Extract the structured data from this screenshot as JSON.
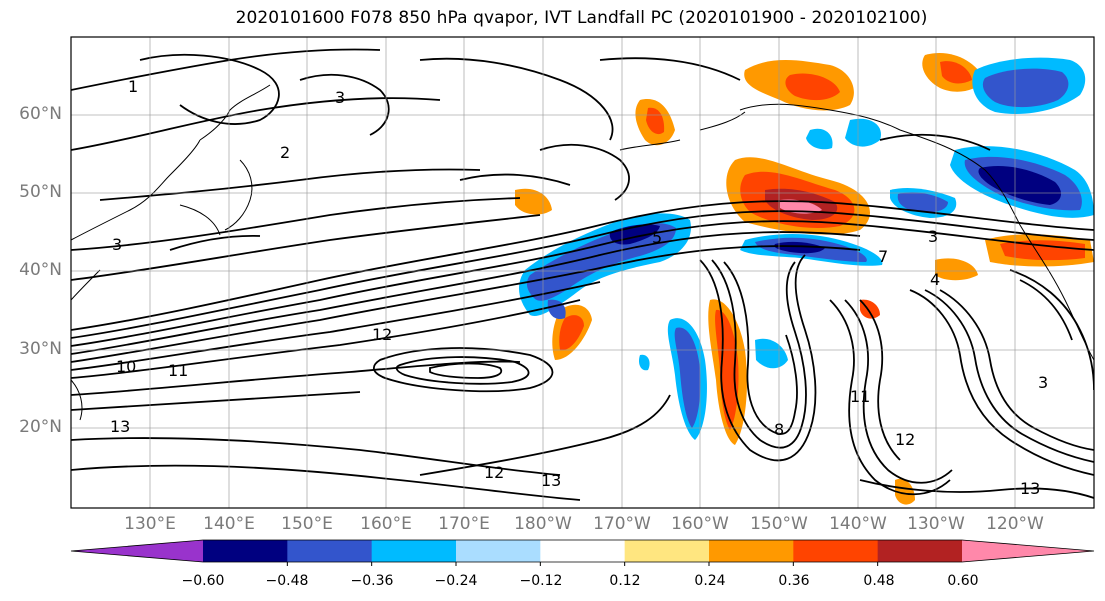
{
  "title": "2020101600 F078 850 hPa qvapor, IVT Landfall PC (2020101900 - 2020102100)",
  "map": {
    "lat_labels": [
      "60°N",
      "50°N",
      "40°N",
      "30°N",
      "20°N"
    ],
    "lon_labels": [
      "130°E",
      "140°E",
      "150°E",
      "160°E",
      "170°E",
      "180°W",
      "170°W",
      "160°W",
      "150°W",
      "140°W",
      "130°W",
      "120°W"
    ],
    "contour_labels": [
      "1",
      "3",
      "2",
      "3",
      "3",
      "5",
      "7",
      "4",
      "12",
      "11",
      "10",
      "13",
      "12",
      "13",
      "8",
      "12",
      "13",
      "3",
      "11"
    ]
  },
  "colorbar": {
    "tick_labels": [
      "−0.60",
      "−0.48",
      "−0.36",
      "−0.24",
      "−0.12",
      "0.12",
      "0.24",
      "0.36",
      "0.48",
      "0.60"
    ],
    "colors": [
      "#9933cc",
      "#000080",
      "#3355cc",
      "#00bbff",
      "#aaddff",
      "#ffffff",
      "#ffe680",
      "#ff9900",
      "#ff4400",
      "#b22222",
      "#ff88aa"
    ]
  }
}
